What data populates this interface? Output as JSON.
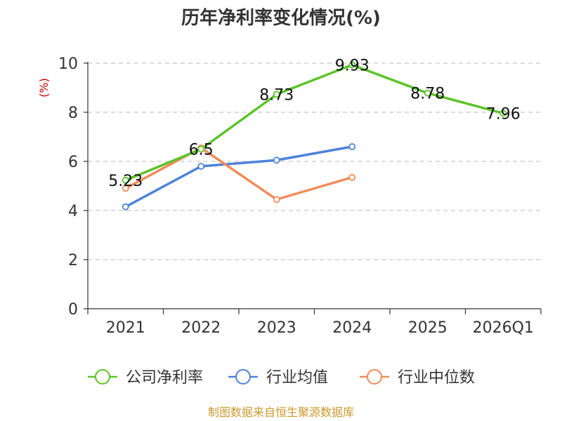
{
  "chart_data": {
    "type": "line",
    "title": "历年净利率变化情况(%)",
    "ylabel": "(%)",
    "xlabel": "",
    "categories": [
      "2021",
      "2022",
      "2023",
      "2024",
      "2025",
      "2026Q1"
    ],
    "ylim": [
      0,
      10
    ],
    "yticks": [
      0,
      2,
      4,
      6,
      8,
      10
    ],
    "grid": "horizontal-dashed",
    "legend": "bottom",
    "series": [
      {
        "name": "公司净利率",
        "color": "#5cc42a",
        "values": [
          5.23,
          6.5,
          8.73,
          9.93,
          8.78,
          7.96
        ],
        "labels": [
          "5.23",
          "6.5",
          "8.73",
          "9.93",
          "8.78",
          "7.96"
        ]
      },
      {
        "name": "行业均值",
        "color": "#4e82d8",
        "values": [
          4.15,
          5.8,
          6.05,
          6.6,
          null,
          null
        ]
      },
      {
        "name": "行业中位数",
        "color": "#f08c5a",
        "values": [
          4.9,
          6.55,
          4.45,
          5.35,
          null,
          null
        ]
      }
    ]
  },
  "source": "制图数据来自恒生聚源数据库"
}
